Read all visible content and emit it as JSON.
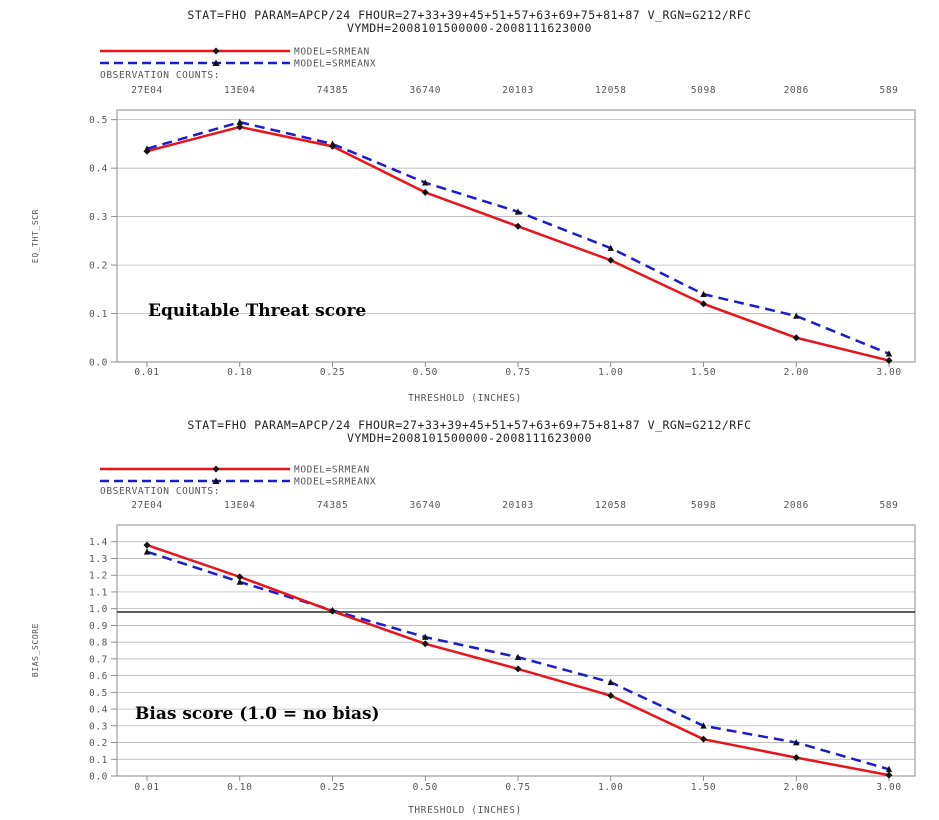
{
  "chart_data": [
    {
      "type": "line",
      "header_line1": "STAT=FHO PARAM=APCP/24 FHOUR=27+33+39+45+51+57+63+69+75+81+87 V_RGN=G212/RFC",
      "header_line2": "VYMDH=2008101500000-2008111623000",
      "obs_label": "OBSERVATION COUNTS:",
      "obs_counts": [
        "27E04",
        "13E04",
        "74385",
        "36740",
        "20103",
        "12058",
        "5098",
        "2086",
        "589"
      ],
      "categories": [
        "0.01",
        "0.10",
        "0.25",
        "0.50",
        "0.75",
        "1.00",
        "1.50",
        "2.00",
        "3.00"
      ],
      "xlabel": "THRESHOLD (INCHES)",
      "ylabel": "EQ_THT_SCR",
      "annotation": "Equitable Threat score",
      "ylim": [
        0,
        0.52
      ],
      "yticks": [
        0,
        0.1,
        0.2,
        0.3,
        0.4,
        0.5
      ],
      "ytick_labels": [
        "0.0",
        "0.1",
        "0.2",
        "0.3",
        "0.4",
        "0.5"
      ],
      "grid": true,
      "series": [
        {
          "name": "MODEL=SRMEAN",
          "color": "#e8141c",
          "dash": "solid",
          "marker": "diamond",
          "values": [
            0.435,
            0.485,
            0.445,
            0.35,
            0.28,
            0.21,
            0.12,
            0.05,
            0.003
          ]
        },
        {
          "name": "MODEL=SRMEANX",
          "color": "#1c1ccf",
          "dash": "dashed",
          "marker": "triangle",
          "values": [
            0.44,
            0.495,
            0.45,
            0.37,
            0.31,
            0.235,
            0.14,
            0.095,
            0.017
          ]
        }
      ]
    },
    {
      "type": "line",
      "header_line1": "STAT=FHO PARAM=APCP/24 FHOUR=27+33+39+45+51+57+63+69+75+81+87 V_RGN=G212/RFC",
      "header_line2": "VYMDH=2008101500000-2008111623000",
      "obs_label": "OBSERVATION COUNTS:",
      "obs_counts": [
        "27E04",
        "13E04",
        "74385",
        "36740",
        "20103",
        "12058",
        "5098",
        "2086",
        "589"
      ],
      "categories": [
        "0.01",
        "0.10",
        "0.25",
        "0.50",
        "0.75",
        "1.00",
        "1.50",
        "2.00",
        "3.00"
      ],
      "xlabel": "THRESHOLD (INCHES)",
      "ylabel": "BIAS_SCORE",
      "annotation": "Bias score (1.0 = no bias)",
      "ylim": [
        0,
        1.5
      ],
      "yticks": [
        0,
        0.1,
        0.2,
        0.3,
        0.4,
        0.5,
        0.6,
        0.7,
        0.8,
        0.9,
        1.0,
        1.1,
        1.2,
        1.3,
        1.4
      ],
      "ytick_labels": [
        "0.0",
        "0.1",
        "0.2",
        "0.3",
        "0.4",
        "0.5",
        "0.6",
        "0.7",
        "0.8",
        "0.9",
        "1.0",
        "1.1",
        "1.2",
        "1.3",
        "1.4"
      ],
      "reference_line": 0.98,
      "grid": true,
      "series": [
        {
          "name": "MODEL=SRMEAN",
          "color": "#e8141c",
          "dash": "solid",
          "marker": "diamond",
          "values": [
            1.38,
            1.19,
            0.985,
            0.79,
            0.64,
            0.48,
            0.22,
            0.11,
            0.005
          ]
        },
        {
          "name": "MODEL=SRMEANX",
          "color": "#1c1ccf",
          "dash": "dashed",
          "marker": "triangle",
          "values": [
            1.34,
            1.16,
            0.99,
            0.83,
            0.71,
            0.56,
            0.3,
            0.2,
            0.04
          ]
        }
      ]
    }
  ]
}
